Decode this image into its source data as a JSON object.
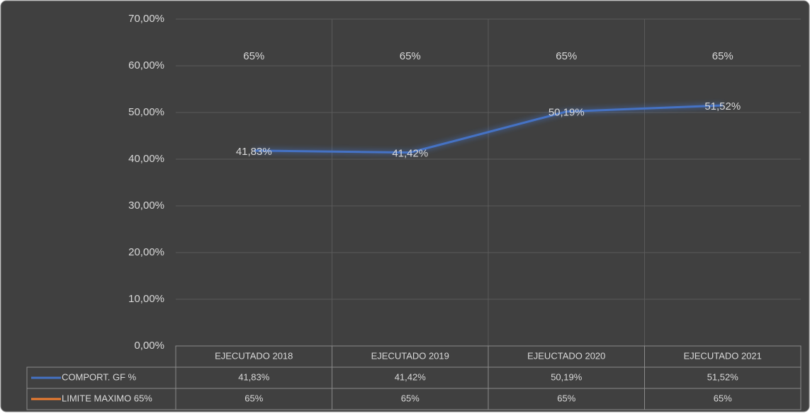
{
  "chart_data": {
    "type": "line",
    "categories": [
      "EJECUTADO 2018",
      "EJECUTADO 2019",
      "EJEUCTADO 2020",
      "EJECUTADO 2021"
    ],
    "series": [
      {
        "name": "COMPORT. GF %",
        "color": "#4472c4",
        "values": [
          41.83,
          41.42,
          50.19,
          51.52
        ],
        "value_labels": [
          "41,83%",
          "41,42%",
          "50,19%",
          "51,52%"
        ]
      },
      {
        "name": "LIMITE MAXIMO 65%",
        "color": "#ed7d31",
        "values": [
          65,
          65,
          65,
          65
        ],
        "value_labels": [
          "65%",
          "65%",
          "65%",
          "65%"
        ]
      }
    ],
    "ylim": [
      0,
      70
    ],
    "yticks": [
      {
        "value": 0,
        "label": "0,00%"
      },
      {
        "value": 10,
        "label": "10,00%"
      },
      {
        "value": 20,
        "label": "20,00%"
      },
      {
        "value": 30,
        "label": "30,00%"
      },
      {
        "value": 40,
        "label": "40,00%"
      },
      {
        "value": 50,
        "label": "50,00%"
      },
      {
        "value": 60,
        "label": "60,00%"
      },
      {
        "value": 70,
        "label": "70,00%"
      }
    ],
    "grid": true
  }
}
